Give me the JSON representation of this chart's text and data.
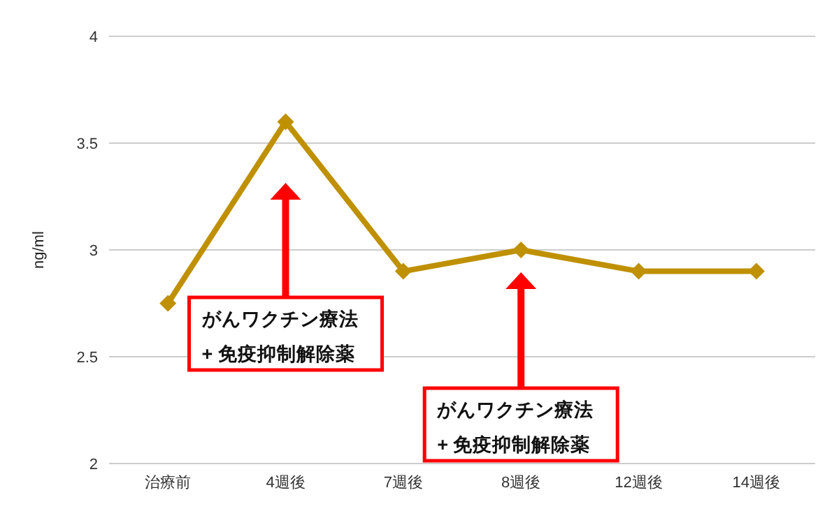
{
  "chart_data": {
    "type": "line",
    "ylabel": "ng/ml",
    "categories": [
      "治療前",
      "4週後",
      "7週後",
      "8週後",
      "12週後",
      "14週後"
    ],
    "series": [
      {
        "color": "#bf9000",
        "values": [
          2.75,
          3.6,
          2.9,
          3.0,
          2.9,
          2.9
        ]
      }
    ],
    "ylim": [
      2,
      4
    ],
    "yticks": [
      2,
      2.5,
      3,
      3.5,
      4
    ],
    "grid": "y",
    "marker": "diamond",
    "line_style": "solid",
    "annotations": [
      "がんワクチン療法\n+ 免疫抑制解除薬",
      "がんワクチン療法\n+ 免疫抑制解除薬"
    ]
  }
}
